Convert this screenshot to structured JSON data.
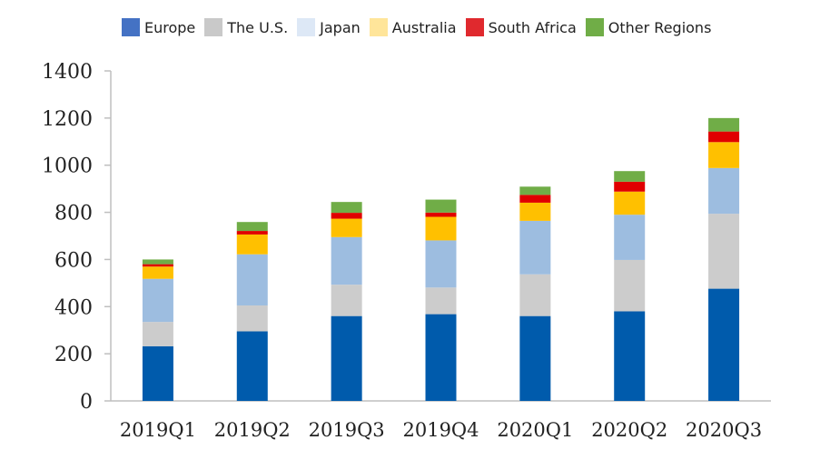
{
  "chart_data": {
    "type": "bar",
    "stacked": true,
    "categories": [
      "2019Q1",
      "2019Q2",
      "2019Q3",
      "2019Q4",
      "2020Q1",
      "2020Q2",
      "2020Q3"
    ],
    "ylim": [
      0,
      1400
    ],
    "yticks": [
      0,
      200,
      400,
      600,
      800,
      1000,
      1200,
      1400
    ],
    "ytick_labels": [
      "0",
      "200",
      "400",
      "600",
      "800",
      "1000",
      "1200",
      "1400"
    ],
    "legend_position": "top",
    "grid": false,
    "series": [
      {
        "name": "Europe",
        "color": "#005bac",
        "values": [
          232,
          295,
          360,
          368,
          360,
          380,
          476
        ]
      },
      {
        "name": "The U.S.",
        "color": "#cccccc",
        "values": [
          103,
          110,
          133,
          113,
          177,
          218,
          318
        ]
      },
      {
        "name": "Japan",
        "color": "#9dbde0",
        "values": [
          183,
          217,
          202,
          200,
          227,
          192,
          194
        ]
      },
      {
        "name": "Australia",
        "color": "#ffc000",
        "values": [
          52,
          84,
          78,
          100,
          77,
          98,
          110
        ]
      },
      {
        "name": "South Africa",
        "color": "#e00000",
        "values": [
          10,
          15,
          25,
          18,
          33,
          42,
          45
        ]
      },
      {
        "name": "Other Regions",
        "color": "#70ad47",
        "values": [
          20,
          38,
          46,
          55,
          35,
          45,
          57
        ]
      }
    ],
    "legend": [
      {
        "name": "Europe",
        "color": "#4472c4"
      },
      {
        "name": "The U.S.",
        "color": "#c9c9c9"
      },
      {
        "name": "Japan",
        "color": "#dde8f6"
      },
      {
        "name": "Australia",
        "color": "#ffe59a"
      },
      {
        "name": "South Africa",
        "color": "#e0292e"
      },
      {
        "name": "Other Regions",
        "color": "#70ad47"
      }
    ]
  }
}
